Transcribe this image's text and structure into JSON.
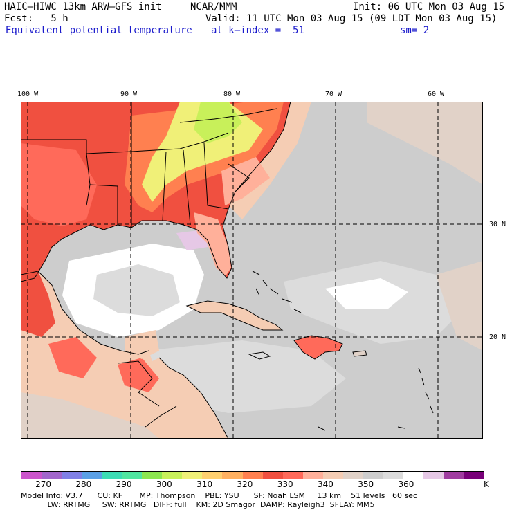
{
  "header": {
    "model_title": "HAIC–HIWC 13km ARW–GFS init",
    "org": "NCAR/MMM",
    "init": "Init: 06 UTC Mon 03 Aug 15",
    "fcst": "Fcst:   5 h",
    "valid": "Valid: 11 UTC Mon 03 Aug 15 (09 LDT Mon 03 Aug 15)",
    "field": "Equivalent potential temperature",
    "level": "at k–index =  51",
    "smooth": "sm= 2"
  },
  "map": {
    "longitude_labels": [
      "100 W",
      "90 W",
      "80 W",
      "70 W",
      "60 W"
    ],
    "latitude_labels": [
      "30 N",
      "20 N"
    ],
    "gridlines": "dashed",
    "region": "Gulf of Mexico, Caribbean, southeastern United States"
  },
  "legend": {
    "unit": "K",
    "tick_labels": [
      "270",
      "280",
      "290",
      "300",
      "310",
      "320",
      "330",
      "340",
      "350",
      "360"
    ],
    "colors": [
      "#cc55cc",
      "#a266cc",
      "#8080e6",
      "#5aa0e6",
      "#3cdcb4",
      "#50e6a0",
      "#8ce650",
      "#c8f05a",
      "#f0f078",
      "#ffd070",
      "#ffb060",
      "#ff8050",
      "#f05040",
      "#ff6a5a",
      "#ffb09a",
      "#f5cdb4",
      "#e1d2c8",
      "#cdcdcd",
      "#dcdcdc",
      "#ffffff",
      "#e6c8e6",
      "#a03ca0",
      "#780078"
    ]
  },
  "footer": {
    "line1": "Model Info: V3.7      CU: KF       MP: Thompson    PBL: YSU      SF: Noah LSM     13 km    51 levels   60 sec",
    "line2": "           LW: RRTMG     SW: RRTMG   DIFF: full    KM: 2D Smagor  DAMP: Rayleigh3  SFLAY: MM5"
  }
}
